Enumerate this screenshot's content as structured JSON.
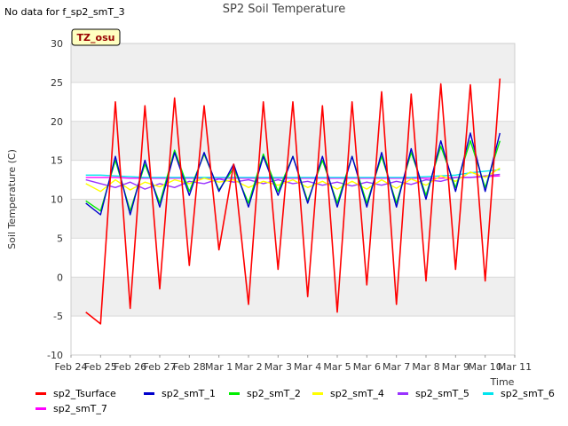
{
  "header": {
    "title": "SP2 Soil Temperature",
    "no_data_note": "No data for f_sp2_smT_3",
    "site_tag": "TZ_osu"
  },
  "colors": {
    "plot_band": "#efefef",
    "grid": "#d9d9d9",
    "tag_bg": "#ffffc0",
    "tag_text": "#990000"
  },
  "chart_data": {
    "type": "line",
    "title": "SP2 Soil Temperature",
    "xlabel": "Time",
    "ylabel": "Soil Temperature (C)",
    "ylim": [
      -10,
      30
    ],
    "yticks": [
      -10,
      -5,
      0,
      5,
      10,
      15,
      20,
      25,
      30
    ],
    "xlim": [
      "2024-02-24",
      "2024-03-11"
    ],
    "xticks": [
      "Feb 24",
      "Feb 25",
      "Feb 26",
      "Feb 27",
      "Feb 28",
      "Mar 1",
      "Mar 2",
      "Mar 3",
      "Mar 4",
      "Mar 5",
      "Mar 6",
      "Mar 7",
      "Mar 8",
      "Mar 9",
      "Mar 10",
      "Mar 11"
    ],
    "grid": true,
    "legend_position": "bottom",
    "x": [
      "Feb 24 12:00",
      "Feb 25 00:00",
      "Feb 25 12:00",
      "Feb 26 00:00",
      "Feb 26 12:00",
      "Feb 27 00:00",
      "Feb 27 12:00",
      "Feb 28 00:00",
      "Feb 28 12:00",
      "Mar 1 00:00",
      "Mar 1 12:00",
      "Mar 2 00:00",
      "Mar 2 12:00",
      "Mar 3 00:00",
      "Mar 3 12:00",
      "Mar 4 00:00",
      "Mar 4 12:00",
      "Mar 5 00:00",
      "Mar 5 12:00",
      "Mar 6 00:00",
      "Mar 6 12:00",
      "Mar 7 00:00",
      "Mar 7 12:00",
      "Mar 8 00:00",
      "Mar 8 12:00",
      "Mar 9 00:00",
      "Mar 9 12:00",
      "Mar 10 00:00",
      "Mar 10 12:00"
    ],
    "series": [
      {
        "name": "sp2_Tsurface",
        "color": "#ff0000",
        "values": [
          -4.5,
          -6,
          22.5,
          -4,
          22,
          -1.5,
          23,
          1.5,
          22,
          3.5,
          14.5,
          -3.5,
          22.5,
          1,
          22.5,
          -2.5,
          22,
          -4.5,
          22.5,
          -1,
          23.8,
          -3.5,
          23.5,
          -0.5,
          24.8,
          1,
          24.7,
          -0.5,
          25.5
        ]
      },
      {
        "name": "sp2_smT_1",
        "color": "#0000cc",
        "values": [
          9.5,
          8,
          15.5,
          8,
          15,
          9,
          16,
          10.5,
          16,
          11,
          14.5,
          9,
          15.5,
          10.5,
          15.5,
          9.5,
          15.5,
          9,
          15.5,
          9,
          16,
          9,
          16.5,
          10,
          17.5,
          11,
          18.5,
          11,
          18.5
        ]
      },
      {
        "name": "sp2_smT_2",
        "color": "#00ee00",
        "values": [
          9.8,
          8.5,
          15,
          8.5,
          14.5,
          9.5,
          16.3,
          11,
          15.8,
          11.2,
          14,
          9.5,
          15.8,
          11,
          15.5,
          9.8,
          15,
          9.5,
          15.5,
          9.5,
          15.5,
          9.5,
          16,
          10.5,
          16.8,
          11.5,
          17.5,
          11.5,
          17.5
        ]
      },
      {
        "name": "sp2_smT_4",
        "color": "#ffff00",
        "values": [
          12,
          11,
          12.5,
          11.2,
          12.2,
          11.6,
          12.5,
          12,
          12.7,
          12.2,
          12.5,
          11.5,
          12.3,
          11.8,
          12.5,
          11.5,
          12.3,
          11.3,
          12.3,
          11.3,
          12.5,
          11.4,
          12.6,
          11.8,
          13,
          12.3,
          13.5,
          12.8,
          14
        ]
      },
      {
        "name": "sp2_smT_5",
        "color": "#9933ff",
        "values": [
          12.5,
          12,
          11.5,
          12.2,
          11.3,
          12,
          11.5,
          12.3,
          12,
          12.6,
          12.2,
          12.5,
          12,
          12.5,
          12,
          12.3,
          11.8,
          12.2,
          11.7,
          12.2,
          11.8,
          12.3,
          11.9,
          12.5,
          12.3,
          12.8,
          12.8,
          13,
          13.2
        ]
      },
      {
        "name": "sp2_smT_6",
        "color": "#00e5ee",
        "values": [
          13.1,
          13.1,
          13,
          12.9,
          12.8,
          12.8,
          12.8,
          12.8,
          12.8,
          12.8,
          12.8,
          12.8,
          12.8,
          12.8,
          12.8,
          12.8,
          12.8,
          12.8,
          12.8,
          12.8,
          12.8,
          12.8,
          12.8,
          12.9,
          13,
          13.1,
          13.4,
          13.6,
          13.8
        ]
      },
      {
        "name": "sp2_smT_7",
        "color": "#ff00ff",
        "values": [
          12.8,
          12.8,
          12.8,
          12.7,
          12.7,
          12.7,
          12.7,
          12.7,
          12.7,
          12.7,
          12.7,
          12.7,
          12.7,
          12.7,
          12.7,
          12.7,
          12.7,
          12.7,
          12.7,
          12.7,
          12.7,
          12.7,
          12.7,
          12.7,
          12.7,
          12.8,
          12.8,
          12.9,
          13
        ]
      }
    ]
  }
}
